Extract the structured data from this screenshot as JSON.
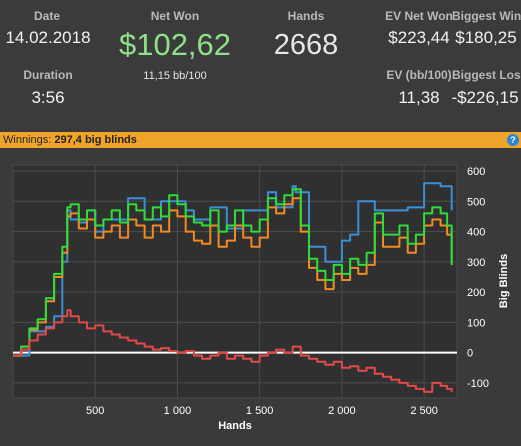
{
  "stats": {
    "date": {
      "label": "Date",
      "value": "14.02.2018"
    },
    "duration": {
      "label": "Duration",
      "value": "3:56"
    },
    "net_won": {
      "label": "Net Won",
      "value": "$102,62",
      "sub": "11,15 bb/100"
    },
    "hands": {
      "label": "Hands",
      "value": "2668"
    },
    "ev_net_won": {
      "label": "EV Net Won",
      "value": "$223,44"
    },
    "biggest_win": {
      "label": "Biggest Win",
      "value": "$180,25"
    },
    "ev_bb100": {
      "label": "EV (bb/100)",
      "value": "11,38"
    },
    "biggest_loss": {
      "label": "Biggest Loss",
      "value": "-$226,15"
    }
  },
  "winnings_bar": {
    "label": "Winnings:",
    "value": "297,4 big blinds",
    "help": "?"
  },
  "colors": {
    "net_won_green": "#8fe08a",
    "bar_orange": "#f0a52a",
    "blue": "#3a8fd6",
    "green": "#2edc3a",
    "orange": "#f08a24",
    "red": "#e24a4a"
  },
  "chart_data": {
    "type": "line",
    "xlabel": "Hands",
    "ylabel": "Big Blinds",
    "xlim": [
      0,
      2700
    ],
    "ylim": [
      -150,
      620
    ],
    "x_ticks": [
      500,
      1000,
      1500,
      2000,
      2500
    ],
    "x_tick_labels": [
      "500",
      "1 000",
      "1 500",
      "2 000",
      "2 500"
    ],
    "y_ticks": [
      600,
      500,
      400,
      300,
      200,
      100,
      0,
      -100
    ],
    "y_tick_labels": [
      "600",
      "500",
      "400",
      "300",
      "200",
      "100",
      "0",
      "-100"
    ],
    "grid": true,
    "series": [
      {
        "key": "blue",
        "color": "#3a8fd6",
        "x": [
          0,
          100,
          200,
          250,
          300,
          330,
          350,
          400,
          450,
          500,
          550,
          600,
          700,
          800,
          900,
          1000,
          1050,
          1100,
          1200,
          1300,
          1400,
          1500,
          1550,
          1600,
          1700,
          1720,
          1800,
          1900,
          2000,
          2050,
          2100,
          2200,
          2300,
          2400,
          2450,
          2500,
          2550,
          2600,
          2650,
          2668
        ],
        "y": [
          -10,
          70,
          85,
          120,
          300,
          470,
          440,
          430,
          470,
          400,
          440,
          440,
          510,
          440,
          500,
          500,
          470,
          440,
          480,
          410,
          470,
          470,
          530,
          480,
          550,
          530,
          350,
          300,
          370,
          390,
          500,
          470,
          470,
          480,
          480,
          560,
          560,
          550,
          550,
          470
        ]
      },
      {
        "key": "green",
        "color": "#2edc3a",
        "x": [
          0,
          50,
          100,
          150,
          200,
          250,
          300,
          330,
          350,
          400,
          450,
          500,
          550,
          600,
          650,
          700,
          750,
          800,
          850,
          900,
          950,
          1000,
          1050,
          1100,
          1150,
          1200,
          1250,
          1300,
          1350,
          1400,
          1450,
          1500,
          1550,
          1600,
          1650,
          1700,
          1750,
          1800,
          1850,
          1900,
          1950,
          2000,
          2050,
          2100,
          2150,
          2200,
          2250,
          2300,
          2350,
          2400,
          2450,
          2500,
          2550,
          2600,
          2640,
          2668
        ],
        "y": [
          -10,
          20,
          80,
          110,
          180,
          260,
          350,
          480,
          490,
          440,
          470,
          420,
          440,
          470,
          430,
          490,
          470,
          440,
          480,
          450,
          520,
          490,
          450,
          430,
          420,
          470,
          400,
          420,
          470,
          420,
          400,
          440,
          510,
          490,
          520,
          540,
          420,
          310,
          270,
          240,
          290,
          260,
          310,
          290,
          330,
          460,
          390,
          390,
          420,
          360,
          390,
          460,
          480,
          460,
          420,
          290
        ]
      },
      {
        "key": "orange",
        "color": "#f08a24",
        "x": [
          0,
          50,
          100,
          150,
          200,
          250,
          300,
          330,
          350,
          400,
          450,
          500,
          550,
          600,
          650,
          700,
          750,
          800,
          850,
          900,
          950,
          1000,
          1050,
          1100,
          1150,
          1200,
          1250,
          1300,
          1350,
          1400,
          1450,
          1500,
          1550,
          1600,
          1650,
          1700,
          1750,
          1800,
          1850,
          1900,
          1950,
          2000,
          2050,
          2100,
          2150,
          2200,
          2250,
          2300,
          2350,
          2400,
          2450,
          2500,
          2550,
          2600,
          2640,
          2668
        ],
        "y": [
          -10,
          20,
          75,
          100,
          170,
          250,
          330,
          450,
          460,
          410,
          440,
          380,
          400,
          420,
          380,
          440,
          420,
          380,
          420,
          400,
          470,
          450,
          400,
          370,
          360,
          420,
          350,
          370,
          420,
          380,
          350,
          380,
          480,
          460,
          490,
          510,
          400,
          280,
          240,
          210,
          260,
          240,
          280,
          260,
          290,
          430,
          350,
          350,
          380,
          330,
          360,
          420,
          440,
          420,
          390,
          290
        ]
      },
      {
        "key": "red",
        "color": "#e24a4a",
        "x": [
          0,
          50,
          100,
          150,
          200,
          250,
          300,
          330,
          350,
          400,
          450,
          500,
          550,
          600,
          650,
          700,
          750,
          800,
          850,
          900,
          950,
          1000,
          1050,
          1100,
          1150,
          1200,
          1250,
          1300,
          1350,
          1400,
          1450,
          1500,
          1550,
          1600,
          1650,
          1700,
          1750,
          1800,
          1850,
          1900,
          1950,
          2000,
          2050,
          2100,
          2150,
          2200,
          2250,
          2300,
          2350,
          2400,
          2450,
          2500,
          2550,
          2600,
          2640,
          2668
        ],
        "y": [
          -10,
          10,
          40,
          60,
          80,
          100,
          120,
          140,
          120,
          100,
          80,
          90,
          70,
          60,
          50,
          40,
          30,
          20,
          10,
          15,
          5,
          0,
          5,
          -10,
          -20,
          -10,
          0,
          -20,
          -10,
          -20,
          -30,
          -10,
          0,
          10,
          0,
          20,
          -10,
          -20,
          -30,
          -40,
          -30,
          -50,
          -45,
          -60,
          -50,
          -70,
          -80,
          -90,
          -100,
          -110,
          -120,
          -130,
          -100,
          -110,
          -120,
          -130
        ]
      }
    ]
  }
}
